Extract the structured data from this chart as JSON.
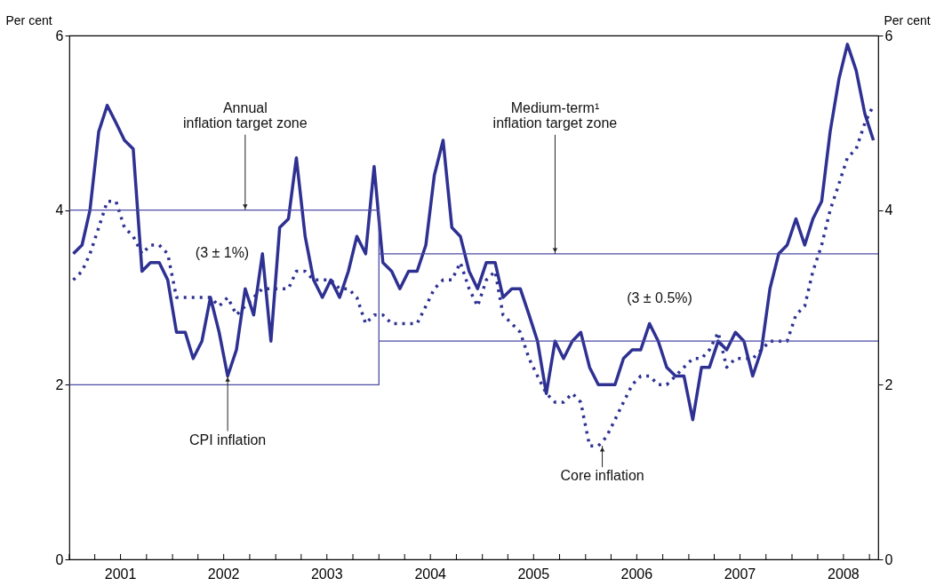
{
  "chart_data": {
    "type": "line",
    "ylabel": "Per cent",
    "y2label": "Per cent",
    "x": [
      "2001-01-15",
      "2001-02-15",
      "2001-03-15",
      "2001-04-15",
      "2001-05-15",
      "2001-06-15",
      "2001-07-15",
      "2001-08-15",
      "2001-09-15",
      "2001-10-15",
      "2001-11-15",
      "2001-12-15",
      "2002-01-15",
      "2002-02-15",
      "2002-03-15",
      "2002-04-15",
      "2002-05-15",
      "2002-06-15",
      "2002-07-15",
      "2002-08-15",
      "2002-09-15",
      "2002-10-15",
      "2002-11-15",
      "2002-12-15",
      "2003-01-15",
      "2003-02-15",
      "2003-03-15",
      "2003-04-15",
      "2003-05-15",
      "2003-06-15",
      "2003-07-15",
      "2003-08-15",
      "2003-09-15",
      "2003-10-15",
      "2003-11-15",
      "2003-12-15",
      "2004-01-15",
      "2004-02-15",
      "2004-03-15",
      "2004-04-15",
      "2004-05-15",
      "2004-06-15",
      "2004-07-15",
      "2004-08-15",
      "2004-09-15",
      "2004-10-15",
      "2004-11-15",
      "2004-12-15",
      "2005-01-15",
      "2005-02-15",
      "2005-03-15",
      "2005-04-15",
      "2005-05-15",
      "2005-06-15",
      "2005-07-15",
      "2005-08-15",
      "2005-09-15",
      "2005-10-15",
      "2005-11-15",
      "2005-12-15",
      "2006-01-15",
      "2006-02-15",
      "2006-03-15",
      "2006-04-15",
      "2006-05-15",
      "2006-06-15",
      "2006-07-15",
      "2006-08-15",
      "2006-09-15",
      "2006-10-15",
      "2006-11-15",
      "2006-12-15",
      "2007-01-15",
      "2007-02-15",
      "2007-03-15",
      "2007-04-15",
      "2007-05-15",
      "2007-06-15",
      "2007-07-15",
      "2007-08-15",
      "2007-09-15",
      "2007-10-15",
      "2007-11-15",
      "2007-12-15",
      "2008-01-15",
      "2008-02-15",
      "2008-03-15",
      "2008-04-15",
      "2008-05-15",
      "2008-06-15",
      "2008-07-15",
      "2008-08-15",
      "2008-09-15",
      "2008-10-15"
    ],
    "series": [
      {
        "color": "#2e3192",
        "line_style": "solid",
        "values": [
          3.5,
          3.6,
          4.0,
          4.9,
          5.2,
          5.0,
          4.8,
          4.7,
          3.3,
          3.4,
          3.4,
          3.2,
          2.6,
          2.6,
          2.3,
          2.5,
          3.0,
          2.6,
          2.1,
          2.4,
          3.1,
          2.8,
          3.5,
          2.5,
          3.8,
          3.9,
          4.6,
          3.7,
          3.2,
          3.0,
          3.2,
          3.0,
          3.3,
          3.7,
          3.5,
          4.5,
          3.4,
          3.3,
          3.1,
          3.3,
          3.3,
          3.6,
          4.4,
          4.8,
          3.8,
          3.7,
          3.3,
          3.1,
          3.4,
          3.4,
          3.0,
          3.1,
          3.1,
          2.8,
          2.5,
          1.9,
          2.5,
          2.3,
          2.5,
          2.6,
          2.2,
          2.0,
          2.0,
          2.0,
          2.3,
          2.4,
          2.4,
          2.7,
          2.5,
          2.2,
          2.1,
          2.1,
          1.6,
          2.2,
          2.2,
          2.5,
          2.4,
          2.6,
          2.5,
          2.1,
          2.4,
          3.1,
          3.5,
          3.6,
          3.9,
          3.6,
          3.9,
          4.1,
          4.9,
          5.5,
          5.9,
          5.6,
          5.1,
          4.8
        ]
      },
      {
        "color": "#2e3192",
        "line_style": "dotted",
        "values": [
          3.2,
          3.3,
          3.5,
          3.8,
          4.1,
          4.1,
          3.8,
          3.7,
          3.5,
          3.6,
          3.6,
          3.5,
          3.0,
          3.0,
          3.0,
          3.0,
          3.0,
          2.9,
          3.0,
          2.8,
          2.9,
          3.0,
          3.1,
          3.1,
          3.1,
          3.1,
          3.3,
          3.3,
          3.2,
          3.2,
          3.2,
          3.1,
          3.1,
          3.0,
          2.7,
          2.8,
          2.8,
          2.7,
          2.7,
          2.7,
          2.7,
          2.9,
          3.1,
          3.2,
          3.2,
          3.4,
          3.1,
          2.9,
          3.2,
          3.3,
          2.8,
          2.7,
          2.6,
          2.3,
          2.1,
          1.9,
          1.8,
          1.8,
          1.9,
          1.8,
          1.3,
          1.3,
          1.4,
          1.6,
          1.8,
          2.0,
          2.1,
          2.1,
          2.0,
          2.0,
          2.1,
          2.2,
          2.3,
          2.3,
          2.4,
          2.6,
          2.2,
          2.3,
          2.3,
          2.3,
          2.4,
          2.5,
          2.5,
          2.5,
          2.8,
          2.9,
          3.3,
          3.6,
          4.0,
          4.3,
          4.6,
          4.7,
          5.0,
          5.2
        ]
      },
      {
        "color": "#4b4ba5",
        "line_style": "solid",
        "x": [
          "2001-01-01",
          "2004-01-01",
          "2004-01-01",
          "2001-01-01"
        ],
        "values": [
          4,
          4,
          2,
          2
        ]
      },
      {
        "color": "#4b4ba5",
        "line_style": "solid",
        "x": [
          "2004-01-01",
          "2008-11-01"
        ],
        "values": [
          3.5,
          3.5
        ]
      },
      {
        "color": "#4b4ba5",
        "line_style": "solid",
        "x": [
          "2004-01-01",
          "2008-11-01"
        ],
        "values": [
          2.5,
          2.5
        ]
      }
    ],
    "xlim": [
      "2001-01-01",
      "2008-11-01"
    ],
    "xticks": [
      {
        "value": "2001-01-01",
        "label": null
      },
      {
        "value": "2001-04-01",
        "label": null
      },
      {
        "value": "2001-07-01",
        "label": "2001"
      },
      {
        "value": "2001-10-01",
        "label": null
      },
      {
        "value": "2002-01-01",
        "label": null
      },
      {
        "value": "2002-04-01",
        "label": null
      },
      {
        "value": "2002-07-01",
        "label": "2002"
      },
      {
        "value": "2002-10-01",
        "label": null
      },
      {
        "value": "2003-01-01",
        "label": null
      },
      {
        "value": "2003-04-01",
        "label": null
      },
      {
        "value": "2003-07-01",
        "label": "2003"
      },
      {
        "value": "2003-10-01",
        "label": null
      },
      {
        "value": "2004-01-01",
        "label": null
      },
      {
        "value": "2004-04-01",
        "label": null
      },
      {
        "value": "2004-07-01",
        "label": "2004"
      },
      {
        "value": "2004-10-01",
        "label": null
      },
      {
        "value": "2005-01-01",
        "label": null
      },
      {
        "value": "2005-04-01",
        "label": null
      },
      {
        "value": "2005-07-01",
        "label": "2005"
      },
      {
        "value": "2005-10-01",
        "label": null
      },
      {
        "value": "2006-01-01",
        "label": null
      },
      {
        "value": "2006-04-01",
        "label": null
      },
      {
        "value": "2006-07-01",
        "label": "2006"
      },
      {
        "value": "2006-10-01",
        "label": null
      },
      {
        "value": "2007-01-01",
        "label": null
      },
      {
        "value": "2007-04-01",
        "label": null
      },
      {
        "value": "2007-07-01",
        "label": "2007"
      },
      {
        "value": "2007-10-01",
        "label": null
      },
      {
        "value": "2008-01-01",
        "label": null
      },
      {
        "value": "2008-04-01",
        "label": null
      },
      {
        "value": "2008-07-01",
        "label": "2008"
      },
      {
        "value": "2008-10-01",
        "label": null
      }
    ],
    "ylim": [
      0,
      6
    ],
    "yticks": [
      0,
      2,
      4,
      6
    ],
    "y2lim": [
      0,
      6
    ],
    "y2ticks": [
      0,
      2,
      4,
      6
    ],
    "grid": false,
    "annotations": [
      {
        "text": "Annual\ninflation target zone",
        "x": "2002-09-15",
        "y": 4
      },
      "(3 ± 1%)",
      {
        "text": "Medium-term¹\ninflation target zone",
        "x": "2005-09-15",
        "y": 3.5
      },
      "(3 ± 0.5%)",
      {
        "text": "CPI inflation",
        "x": "2002-07-15",
        "y": 2.1
      },
      {
        "text": "Core inflation",
        "x": "2006-03-01",
        "y": 1.3
      }
    ]
  }
}
